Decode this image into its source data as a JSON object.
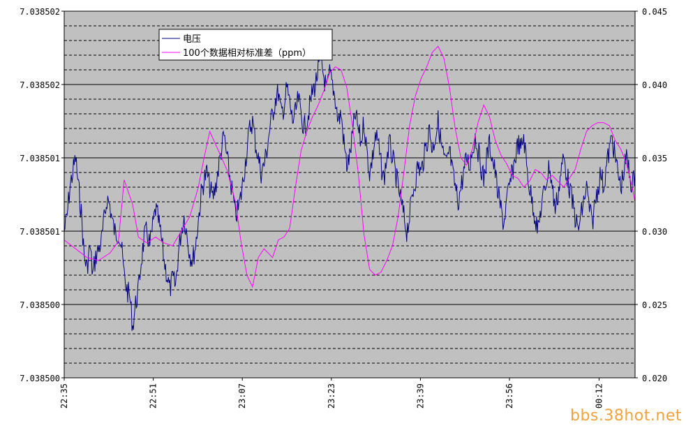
{
  "chart_data": {
    "type": "line",
    "background": "#c0c0c0",
    "grid": true,
    "legend_position": "top-left",
    "x_tick_labels": [
      "22:35",
      "22:51",
      "23:07",
      "23:23",
      "23:39",
      "23:56",
      "00:12"
    ],
    "y_left_tick_labels": [
      "7.038502",
      "7.038502",
      "7.038501",
      "7.038501",
      "7.038500",
      "7.038500"
    ],
    "y_right_tick_labels": [
      "0.045",
      "0.040",
      "0.035",
      "0.030",
      "0.025",
      "0.020"
    ],
    "y_right_range": [
      0.02,
      0.045
    ],
    "series": [
      {
        "name": "电压",
        "axis": "left",
        "color": "#000080",
        "points_pct_of_left_axis": [
          [
            0,
            0.4
          ],
          [
            0.5,
            0.44
          ],
          [
            1,
            0.52
          ],
          [
            1.5,
            0.56
          ],
          [
            2,
            0.6
          ],
          [
            2.5,
            0.52
          ],
          [
            3,
            0.45
          ],
          [
            3.5,
            0.33
          ],
          [
            4,
            0.3
          ],
          [
            4.5,
            0.36
          ],
          [
            5,
            0.28
          ],
          [
            5.5,
            0.33
          ],
          [
            6,
            0.35
          ],
          [
            6.5,
            0.37
          ],
          [
            7,
            0.43
          ],
          [
            7.5,
            0.49
          ],
          [
            8,
            0.47
          ],
          [
            8.5,
            0.42
          ],
          [
            9,
            0.39
          ],
          [
            9.5,
            0.4
          ],
          [
            10,
            0.36
          ],
          [
            10.5,
            0.28
          ],
          [
            11,
            0.24
          ],
          [
            11.5,
            0.22
          ],
          [
            12,
            0.14
          ],
          [
            12.5,
            0.2
          ],
          [
            13,
            0.24
          ],
          [
            13.5,
            0.32
          ],
          [
            14,
            0.38
          ],
          [
            14.5,
            0.4
          ],
          [
            15,
            0.36
          ],
          [
            15.5,
            0.41
          ],
          [
            16,
            0.46
          ],
          [
            16.5,
            0.43
          ],
          [
            17,
            0.38
          ],
          [
            17.5,
            0.32
          ],
          [
            18,
            0.28
          ],
          [
            18.5,
            0.24
          ],
          [
            19,
            0.27
          ],
          [
            19.5,
            0.25
          ],
          [
            20,
            0.34
          ],
          [
            20.5,
            0.4
          ],
          [
            21,
            0.44
          ],
          [
            21.5,
            0.39
          ],
          [
            22,
            0.34
          ],
          [
            22.5,
            0.32
          ],
          [
            23,
            0.36
          ],
          [
            23.5,
            0.43
          ],
          [
            24,
            0.5
          ],
          [
            24.5,
            0.54
          ],
          [
            25,
            0.56
          ],
          [
            25.5,
            0.52
          ],
          [
            26,
            0.49
          ],
          [
            26.5,
            0.52
          ],
          [
            27,
            0.57
          ],
          [
            27.5,
            0.62
          ],
          [
            28,
            0.66
          ],
          [
            28.5,
            0.6
          ],
          [
            29,
            0.55
          ],
          [
            29.5,
            0.5
          ],
          [
            30,
            0.44
          ],
          [
            30.5,
            0.46
          ],
          [
            31,
            0.5
          ],
          [
            31.5,
            0.56
          ],
          [
            32,
            0.62
          ],
          [
            32.5,
            0.68
          ],
          [
            33,
            0.7
          ],
          [
            33.5,
            0.64
          ],
          [
            34,
            0.6
          ],
          [
            34.5,
            0.56
          ],
          [
            35,
            0.58
          ],
          [
            35.5,
            0.62
          ],
          [
            36,
            0.68
          ],
          [
            36.5,
            0.72
          ],
          [
            37,
            0.76
          ],
          [
            37.5,
            0.78
          ],
          [
            38,
            0.72
          ],
          [
            38.5,
            0.74
          ],
          [
            39,
            0.79
          ],
          [
            39.5,
            0.75
          ],
          [
            40,
            0.7
          ],
          [
            40.5,
            0.72
          ],
          [
            41,
            0.76
          ],
          [
            41.5,
            0.72
          ],
          [
            42,
            0.68
          ],
          [
            42.5,
            0.7
          ],
          [
            43,
            0.74
          ],
          [
            43.5,
            0.78
          ],
          [
            44,
            0.8
          ],
          [
            44.5,
            0.84
          ],
          [
            45,
            0.86
          ],
          [
            45.5,
            0.82
          ],
          [
            46,
            0.78
          ],
          [
            46.5,
            0.83
          ],
          [
            47,
            0.8
          ],
          [
            47.5,
            0.76
          ],
          [
            48,
            0.7
          ],
          [
            48.5,
            0.72
          ],
          [
            49,
            0.64
          ],
          [
            49.5,
            0.58
          ],
          [
            50,
            0.6
          ],
          [
            50.5,
            0.66
          ],
          [
            51,
            0.72
          ],
          [
            51.5,
            0.68
          ],
          [
            52,
            0.64
          ],
          [
            52.5,
            0.7
          ],
          [
            53,
            0.62
          ],
          [
            53.5,
            0.56
          ],
          [
            54,
            0.6
          ],
          [
            54.5,
            0.66
          ],
          [
            55,
            0.64
          ],
          [
            55.5,
            0.58
          ],
          [
            56,
            0.54
          ],
          [
            56.5,
            0.6
          ],
          [
            57,
            0.64
          ],
          [
            57.5,
            0.6
          ],
          [
            58,
            0.56
          ],
          [
            58.5,
            0.52
          ],
          [
            59,
            0.48
          ],
          [
            59.5,
            0.44
          ],
          [
            60,
            0.4
          ],
          [
            60.5,
            0.44
          ],
          [
            61,
            0.5
          ],
          [
            61.5,
            0.54
          ],
          [
            62,
            0.58
          ],
          [
            62.5,
            0.56
          ],
          [
            63,
            0.6
          ],
          [
            63.5,
            0.64
          ],
          [
            64,
            0.68
          ],
          [
            64.5,
            0.62
          ],
          [
            65,
            0.66
          ],
          [
            65.5,
            0.7
          ],
          [
            66,
            0.64
          ],
          [
            66.5,
            0.6
          ],
          [
            67,
            0.58
          ],
          [
            67.5,
            0.62
          ],
          [
            68,
            0.56
          ],
          [
            68.5,
            0.52
          ],
          [
            69,
            0.48
          ],
          [
            69.5,
            0.52
          ],
          [
            70,
            0.56
          ],
          [
            70.5,
            0.6
          ],
          [
            71,
            0.58
          ],
          [
            71.5,
            0.62
          ],
          [
            72,
            0.66
          ],
          [
            72.5,
            0.62
          ],
          [
            73,
            0.58
          ],
          [
            73.5,
            0.54
          ],
          [
            74,
            0.6
          ],
          [
            74.5,
            0.64
          ],
          [
            75,
            0.6
          ],
          [
            75.5,
            0.56
          ],
          [
            76,
            0.5
          ],
          [
            76.5,
            0.46
          ],
          [
            77,
            0.42
          ],
          [
            77.5,
            0.48
          ],
          [
            78,
            0.52
          ],
          [
            78.5,
            0.56
          ],
          [
            79,
            0.6
          ],
          [
            79.5,
            0.64
          ],
          [
            80,
            0.62
          ],
          [
            80.5,
            0.66
          ],
          [
            81,
            0.58
          ],
          [
            81.5,
            0.52
          ],
          [
            82,
            0.48
          ],
          [
            82.5,
            0.44
          ],
          [
            83,
            0.4
          ],
          [
            83.5,
            0.46
          ],
          [
            84,
            0.5
          ],
          [
            84.5,
            0.54
          ],
          [
            85,
            0.58
          ],
          [
            85.5,
            0.52
          ],
          [
            86,
            0.46
          ],
          [
            86.5,
            0.5
          ],
          [
            87,
            0.56
          ],
          [
            87.5,
            0.6
          ],
          [
            88,
            0.56
          ],
          [
            88.5,
            0.52
          ],
          [
            89,
            0.48
          ],
          [
            89.5,
            0.44
          ],
          [
            90,
            0.4
          ],
          [
            90.5,
            0.44
          ],
          [
            91,
            0.48
          ],
          [
            91.5,
            0.52
          ],
          [
            92,
            0.46
          ],
          [
            92.5,
            0.42
          ],
          [
            93,
            0.48
          ],
          [
            93.5,
            0.52
          ],
          [
            94,
            0.56
          ],
          [
            94.5,
            0.52
          ],
          [
            95,
            0.58
          ],
          [
            95.5,
            0.62
          ],
          [
            96,
            0.66
          ],
          [
            96.5,
            0.6
          ],
          [
            97,
            0.56
          ],
          [
            97.5,
            0.52
          ],
          [
            98,
            0.56
          ],
          [
            98.5,
            0.6
          ],
          [
            99,
            0.56
          ],
          [
            99.5,
            0.52
          ],
          [
            100,
            0.56
          ]
        ]
      },
      {
        "name": "100个数据相对标准差（ppm）",
        "axis": "right",
        "color": "#ff00ff",
        "points": [
          [
            0,
            0.0294
          ],
          [
            2,
            0.0288
          ],
          [
            4,
            0.0282
          ],
          [
            6,
            0.028
          ],
          [
            8,
            0.0285
          ],
          [
            9.5,
            0.0293
          ],
          [
            10.5,
            0.0335
          ],
          [
            12,
            0.0318
          ],
          [
            13,
            0.0296
          ],
          [
            14.5,
            0.0292
          ],
          [
            16,
            0.0296
          ],
          [
            17.5,
            0.0292
          ],
          [
            19,
            0.029
          ],
          [
            20.5,
            0.03
          ],
          [
            22,
            0.031
          ],
          [
            23.5,
            0.033
          ],
          [
            24.5,
            0.035
          ],
          [
            25.5,
            0.0368
          ],
          [
            27,
            0.0355
          ],
          [
            28.5,
            0.0342
          ],
          [
            30,
            0.032
          ],
          [
            31,
            0.0292
          ],
          [
            32,
            0.027
          ],
          [
            33,
            0.0262
          ],
          [
            34,
            0.0282
          ],
          [
            35,
            0.0288
          ],
          [
            36.5,
            0.0282
          ],
          [
            37.5,
            0.0294
          ],
          [
            38.5,
            0.0296
          ],
          [
            39.5,
            0.0302
          ],
          [
            40.5,
            0.033
          ],
          [
            41.5,
            0.0355
          ],
          [
            42.5,
            0.0368
          ],
          [
            43.5,
            0.0378
          ],
          [
            44.5,
            0.0386
          ],
          [
            45.5,
            0.0396
          ],
          [
            46.5,
            0.0408
          ],
          [
            47.5,
            0.0412
          ],
          [
            48.5,
            0.041
          ],
          [
            49.5,
            0.0398
          ],
          [
            50.5,
            0.0372
          ],
          [
            51.5,
            0.034
          ],
          [
            52.5,
            0.0298
          ],
          [
            53.5,
            0.0274
          ],
          [
            54.5,
            0.027
          ],
          [
            55.5,
            0.0272
          ],
          [
            56.5,
            0.028
          ],
          [
            57.5,
            0.029
          ],
          [
            58.5,
            0.031
          ],
          [
            59.5,
            0.034
          ],
          [
            60.5,
            0.0372
          ],
          [
            61.5,
            0.0392
          ],
          [
            62.5,
            0.0404
          ],
          [
            63.5,
            0.0412
          ],
          [
            64.5,
            0.0422
          ],
          [
            65.5,
            0.0426
          ],
          [
            66.5,
            0.0418
          ],
          [
            67.5,
            0.0398
          ],
          [
            68.5,
            0.037
          ],
          [
            69.5,
            0.035
          ],
          [
            70.5,
            0.0345
          ],
          [
            71.5,
            0.0356
          ],
          [
            72.5,
            0.0374
          ],
          [
            73.5,
            0.0386
          ],
          [
            74.5,
            0.0378
          ],
          [
            75.5,
            0.0362
          ],
          [
            76.5,
            0.0352
          ],
          [
            77.5,
            0.0346
          ],
          [
            78.5,
            0.0338
          ],
          [
            79.5,
            0.0336
          ],
          [
            80.5,
            0.033
          ],
          [
            81.5,
            0.0334
          ],
          [
            82.5,
            0.0342
          ],
          [
            83.5,
            0.034
          ],
          [
            84.5,
            0.0335
          ],
          [
            85.5,
            0.0338
          ],
          [
            86.5,
            0.0334
          ],
          [
            87.5,
            0.033
          ],
          [
            88.5,
            0.0336
          ],
          [
            89.5,
            0.0342
          ],
          [
            90.5,
            0.0356
          ],
          [
            91.5,
            0.0368
          ],
          [
            92.5,
            0.0372
          ],
          [
            93.5,
            0.0374
          ],
          [
            94.5,
            0.0374
          ],
          [
            95.5,
            0.0372
          ],
          [
            96.5,
            0.0362
          ],
          [
            97.5,
            0.0356
          ],
          [
            98.5,
            0.0346
          ],
          [
            99.5,
            0.033
          ],
          [
            100,
            0.032
          ]
        ]
      }
    ]
  },
  "watermark": "bbs.38hot.net"
}
